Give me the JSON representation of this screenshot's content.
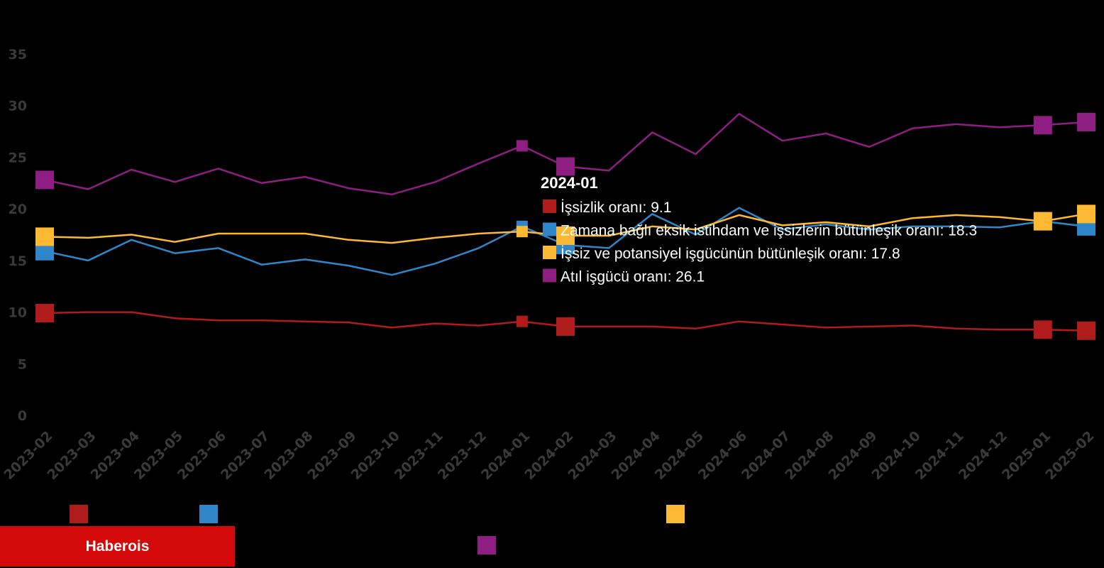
{
  "chart_data": {
    "type": "line",
    "x": [
      "2023-02",
      "2023-03",
      "2023-04",
      "2023-05",
      "2023-06",
      "2023-07",
      "2023-08",
      "2023-09",
      "2023-10",
      "2023-11",
      "2023-12",
      "2024-01",
      "2024-02",
      "2024-03",
      "2024-04",
      "2024-05",
      "2024-06",
      "2024-07",
      "2024-08",
      "2024-09",
      "2024-10",
      "2024-11",
      "2024-12",
      "2025-01",
      "2025-02"
    ],
    "ylim": [
      0,
      35
    ],
    "yticks": [
      0,
      5,
      10,
      15,
      20,
      25,
      30,
      35
    ],
    "grid": false,
    "legend_position": "bottom",
    "series": [
      {
        "name": "İşsizlik oranı",
        "color": "#b01b1b",
        "values": [
          9.9,
          10.0,
          10.0,
          9.4,
          9.2,
          9.2,
          9.1,
          9.0,
          8.5,
          8.9,
          8.7,
          9.1,
          8.6,
          8.6,
          8.6,
          8.4,
          9.1,
          8.8,
          8.5,
          8.6,
          8.7,
          8.4,
          8.3,
          8.3,
          8.2
        ]
      },
      {
        "name": "Zamana bağlı eksik istihdam ve işsizlerin bütünleşik oranı",
        "color": "#2f86c8",
        "values": [
          15.9,
          15.0,
          17.0,
          15.7,
          16.2,
          14.6,
          15.1,
          14.5,
          13.6,
          14.7,
          16.2,
          18.3,
          16.5,
          16.2,
          19.5,
          17.5,
          20.1,
          18.0,
          18.5,
          18.0,
          18.3,
          18.3,
          18.2,
          18.8,
          18.3
        ]
      },
      {
        "name": "İşsiz ve potansiyel işgücünün bütünleşik oranı",
        "color": "#fdb933",
        "values": [
          17.3,
          17.2,
          17.5,
          16.8,
          17.6,
          17.6,
          17.6,
          17.0,
          16.7,
          17.2,
          17.6,
          17.8,
          17.4,
          17.4,
          18.3,
          18.0,
          19.4,
          18.4,
          18.7,
          18.3,
          19.1,
          19.4,
          19.2,
          18.8,
          19.5
        ]
      },
      {
        "name": "Atıl işgücü oranı",
        "color": "#8e1e82",
        "values": [
          22.8,
          21.9,
          23.8,
          22.6,
          23.9,
          22.5,
          23.1,
          22.0,
          21.4,
          22.6,
          24.4,
          26.1,
          24.1,
          23.7,
          27.4,
          25.3,
          29.2,
          26.6,
          27.3,
          26.0,
          27.8,
          28.2,
          27.9,
          28.1,
          28.4
        ]
      }
    ],
    "tooltip": {
      "title": "2024-01",
      "lines": [
        "İşsizlik oranı: 9.1",
        "Zamana bağlı eksik istihdam ve işsizlerin bütünleşik oranı: 18.3",
        "İşsiz ve potansiyel işgücünün bütünleşik oranı: 17.8",
        "Atıl işgücü oranı: 26.1"
      ]
    }
  },
  "footer": {
    "brand": "Haberois"
  }
}
